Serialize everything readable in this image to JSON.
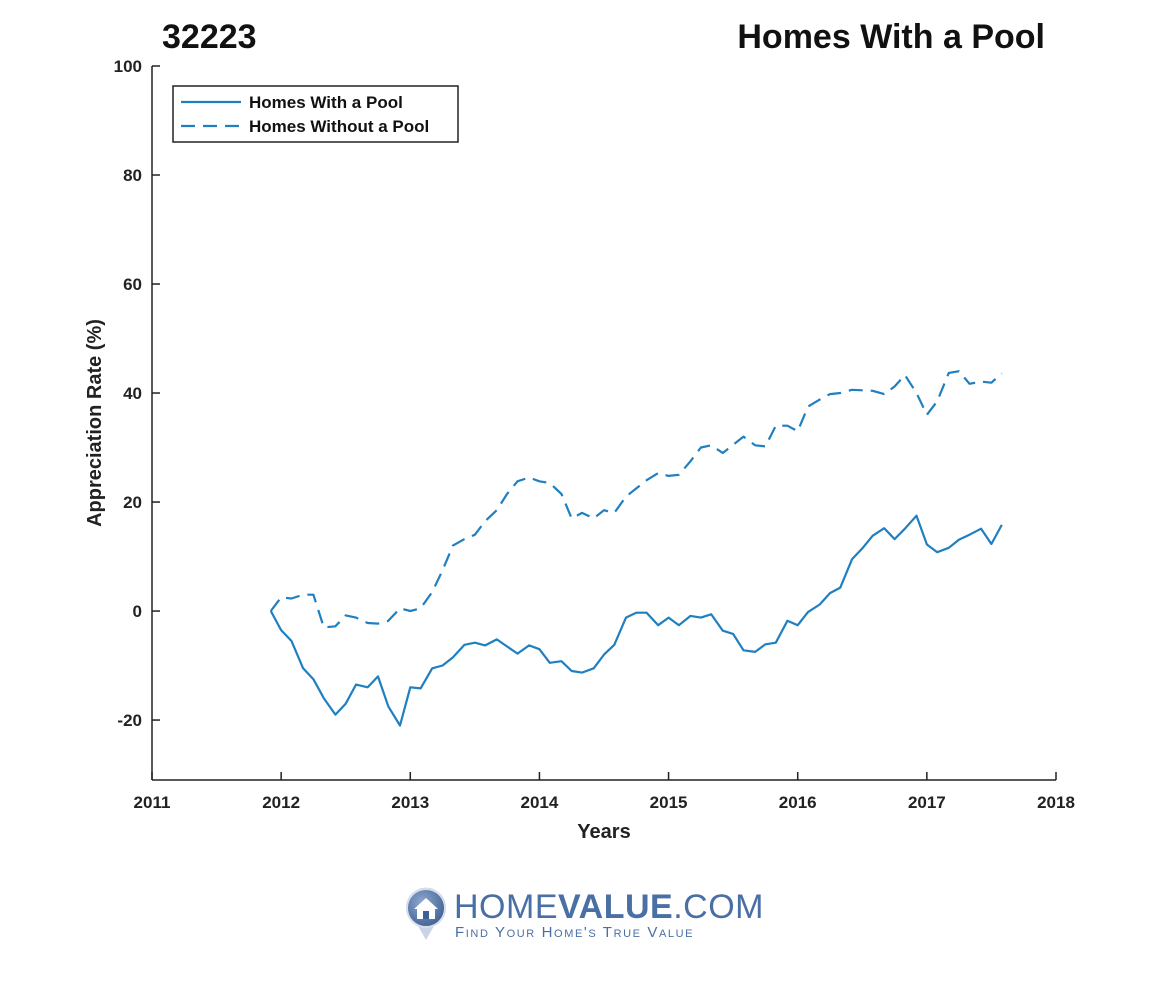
{
  "header": {
    "zip": "32223",
    "title": "Homes With a Pool"
  },
  "brand": {
    "name_part1": "HOME",
    "name_part2": "VALUE",
    "name_part3": ".COM",
    "tagline": "Find Your Home's True Value",
    "icon": "house-pin-icon",
    "color": "#4a6fa5"
  },
  "chart_data": {
    "type": "line",
    "xlabel": "Years",
    "ylabel": "Appreciation Rate (%)",
    "xlim": [
      2011,
      2018
    ],
    "ylim": [
      -31,
      100
    ],
    "xticks": [
      2011,
      2012,
      2013,
      2014,
      2015,
      2016,
      2017,
      2018
    ],
    "yticks": [
      -20,
      0,
      20,
      40,
      60,
      80,
      100
    ],
    "grid": false,
    "legend_position": "top-left",
    "line_color": "#1f7fc0",
    "series": [
      {
        "name": "Homes With a Pool",
        "style": "solid",
        "x": [
          2011.92,
          2012.0,
          2012.08,
          2012.17,
          2012.25,
          2012.33,
          2012.42,
          2012.5,
          2012.58,
          2012.67,
          2012.75,
          2012.83,
          2012.92,
          2013.0,
          2013.08,
          2013.17,
          2013.25,
          2013.33,
          2013.42,
          2013.5,
          2013.58,
          2013.67,
          2013.75,
          2013.83,
          2013.92,
          2014.0,
          2014.08,
          2014.17,
          2014.25,
          2014.33,
          2014.42,
          2014.5,
          2014.58,
          2014.67,
          2014.75,
          2014.83,
          2014.92,
          2015.0,
          2015.08,
          2015.17,
          2015.25,
          2015.33,
          2015.42,
          2015.5,
          2015.58,
          2015.67,
          2015.75,
          2015.83,
          2015.92,
          2016.0,
          2016.08,
          2016.17,
          2016.25,
          2016.33,
          2016.42,
          2016.5,
          2016.58,
          2016.67,
          2016.75,
          2016.83,
          2016.92,
          2017.0,
          2017.08,
          2017.17,
          2017.25,
          2017.33,
          2017.42,
          2017.5,
          2017.58
        ],
        "y": [
          0,
          -3.5,
          -5.5,
          -10.5,
          -12.5,
          -16,
          -19,
          -17,
          -13.5,
          -14,
          -12,
          -17.5,
          -21,
          -14,
          -14.2,
          -10.5,
          -10,
          -8.5,
          -6.2,
          -5.8,
          -6.3,
          -5.2,
          -6.5,
          -7.8,
          -6.3,
          -7,
          -9.5,
          -9.2,
          -11,
          -11.3,
          -10.5,
          -8,
          -6.2,
          -1.2,
          -0.3,
          -0.3,
          -2.6,
          -1.2,
          -2.6,
          -0.9,
          -1.2,
          -0.6,
          -3.6,
          -4.2,
          -7.2,
          -7.5,
          -6.1,
          -5.8,
          -1.8,
          -2.6,
          -0.2,
          1.2,
          3.3,
          4.3,
          9.5,
          11.5,
          13.8,
          15.2,
          13.2,
          15.1,
          17.5,
          12.2,
          10.8,
          11.6,
          13.1,
          14,
          15.1,
          12.3,
          15.8
        ]
      },
      {
        "name": "Homes Without a Pool",
        "style": "dashed",
        "x": [
          2011.92,
          2012.0,
          2012.08,
          2012.17,
          2012.25,
          2012.33,
          2012.42,
          2012.5,
          2012.58,
          2012.67,
          2012.75,
          2012.83,
          2012.92,
          2013.0,
          2013.08,
          2013.17,
          2013.25,
          2013.33,
          2013.42,
          2013.5,
          2013.58,
          2013.67,
          2013.75,
          2013.83,
          2013.92,
          2014.0,
          2014.08,
          2014.17,
          2014.25,
          2014.33,
          2014.42,
          2014.5,
          2014.58,
          2014.67,
          2014.75,
          2014.83,
          2014.92,
          2015.0,
          2015.08,
          2015.17,
          2015.25,
          2015.33,
          2015.42,
          2015.5,
          2015.58,
          2015.67,
          2015.75,
          2015.83,
          2015.92,
          2016.0,
          2016.08,
          2016.17,
          2016.25,
          2016.33,
          2016.42,
          2016.5,
          2016.58,
          2016.67,
          2016.75,
          2016.83,
          2016.92,
          2017.0,
          2017.08,
          2017.17,
          2017.25,
          2017.33,
          2017.42,
          2017.5,
          2017.58
        ],
        "y": [
          0,
          2.5,
          2.3,
          3,
          3,
          -3,
          -2.8,
          -0.8,
          -1.2,
          -2.2,
          -2.3,
          -1.8,
          0.5,
          0,
          0.5,
          3.5,
          7.5,
          12,
          13.2,
          14,
          16.5,
          18.5,
          21.5,
          23.8,
          24.5,
          23.8,
          23.5,
          21.5,
          17,
          18,
          17,
          18.5,
          18,
          21,
          22.5,
          24,
          25.3,
          24.8,
          25,
          27.5,
          30,
          30.4,
          29,
          30.5,
          32,
          30.4,
          30.2,
          34,
          34,
          33,
          37.5,
          38.8,
          39.8,
          40,
          40.6,
          40.5,
          40.4,
          39.8,
          41.2,
          43.3,
          40,
          36,
          38.5,
          43.7,
          44,
          41.7,
          42.1,
          41.9,
          43.6
        ]
      }
    ]
  }
}
